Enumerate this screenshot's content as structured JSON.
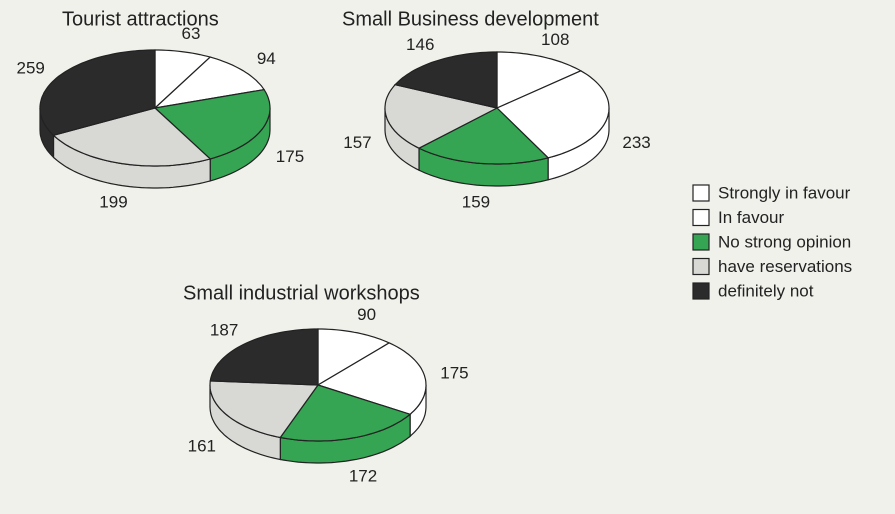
{
  "legend": {
    "labels": [
      "Strongly in favour",
      "In favour",
      "No strong opinion",
      "have reservations",
      "definitely not"
    ],
    "colors": [
      "#ffffff",
      "#ffffff",
      "#35a453",
      "#d8d9d5",
      "#2b2b2b"
    ]
  },
  "chart_data": [
    {
      "type": "pie",
      "title": "Tourist attractions",
      "values": [
        63,
        94,
        175,
        199,
        259
      ]
    },
    {
      "type": "pie",
      "title": "Small Business development",
      "values": [
        108,
        233,
        159,
        157,
        146
      ]
    },
    {
      "type": "pie",
      "title": "Small industrial workshops",
      "values": [
        90,
        175,
        172,
        161,
        187
      ]
    }
  ]
}
